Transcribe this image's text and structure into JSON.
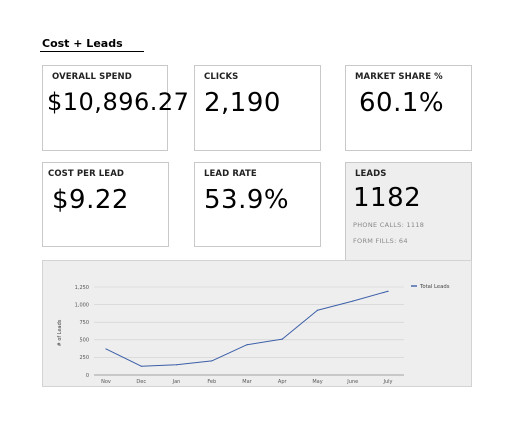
{
  "section_title": "Cost + Leads",
  "cards": {
    "overall_spend": {
      "label": "OVERALL SPEND",
      "value": "$10,896.27"
    },
    "clicks": {
      "label": "CLICKS",
      "value": "2,190"
    },
    "market_share": {
      "label": "MARKET SHARE %",
      "value": "60.1%"
    },
    "cost_per_lead": {
      "label": "COST PER LEAD",
      "value": "$9.22"
    },
    "lead_rate": {
      "label": "LEAD RATE",
      "value": "53.9%"
    },
    "leads": {
      "label": "LEADS",
      "value": "1182",
      "phone_calls": "PHONE CALLS: 1118",
      "form_fills": "FORM FILLS: 64"
    }
  },
  "chart_data": {
    "type": "line",
    "categories": [
      "Nov",
      "Dec",
      "Jan",
      "Feb",
      "Mar",
      "Apr",
      "May",
      "June",
      "July"
    ],
    "series": [
      {
        "name": "Total Leads",
        "values": [
          370,
          125,
          145,
          200,
          430,
          510,
          920,
          1050,
          1190
        ],
        "color": "#3c5fa8"
      }
    ],
    "ylabel": "# of Leads",
    "xlabel": "",
    "ylim": [
      0,
      1250
    ],
    "yticks": [
      0,
      250,
      500,
      750,
      1000,
      1250
    ],
    "ytick_labels": [
      "0",
      "250",
      "500",
      "750",
      "1,000",
      "1,250"
    ],
    "grid": true,
    "legend": "top-right"
  }
}
